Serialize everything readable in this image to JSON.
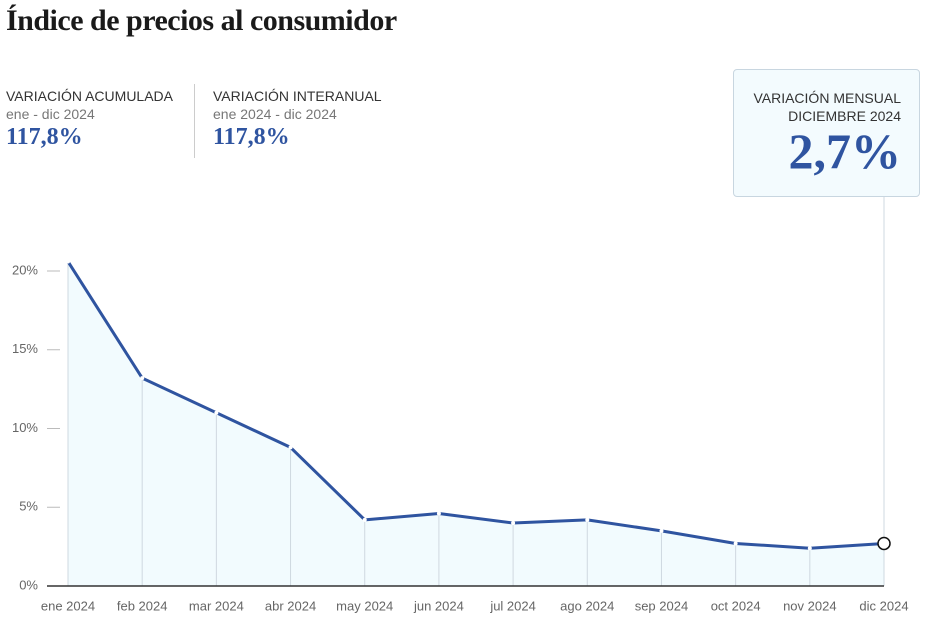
{
  "chart_data": {
    "type": "line",
    "title": "Índice de precios al consumidor",
    "categories": [
      "ene 2024",
      "feb 2024",
      "mar 2024",
      "abr 2024",
      "may 2024",
      "jun 2024",
      "jul 2024",
      "ago 2024",
      "sep 2024",
      "oct 2024",
      "nov 2024",
      "dic 2024"
    ],
    "series": [
      {
        "name": "Variación mensual",
        "color": "#2f54a0",
        "values": [
          20.6,
          13.2,
          11.0,
          8.8,
          4.2,
          4.6,
          4.0,
          4.2,
          3.5,
          2.7,
          2.4,
          2.7
        ]
      }
    ],
    "ylim": [
      0,
      22
    ],
    "yticks": [
      {
        "value": 0,
        "label": "0%"
      },
      {
        "value": 5,
        "label": "5%"
      },
      {
        "value": 10,
        "label": "10%"
      },
      {
        "value": 15,
        "label": "15%"
      },
      {
        "value": 20,
        "label": "20%"
      }
    ],
    "area_color": "#f2fbfe",
    "grid": false
  },
  "stats": [
    {
      "label": "VARIACIÓN ACUMULADA",
      "period": "ene - dic 2024",
      "value": "117,8%"
    },
    {
      "label": "VARIACIÓN INTERANUAL",
      "period": "ene 2024 - dic 2024",
      "value": "117,8%"
    }
  ],
  "tooltip": {
    "label": "VARIACIÓN MENSUAL",
    "period": "DICIEMBRE 2024",
    "value": "2,7%"
  }
}
